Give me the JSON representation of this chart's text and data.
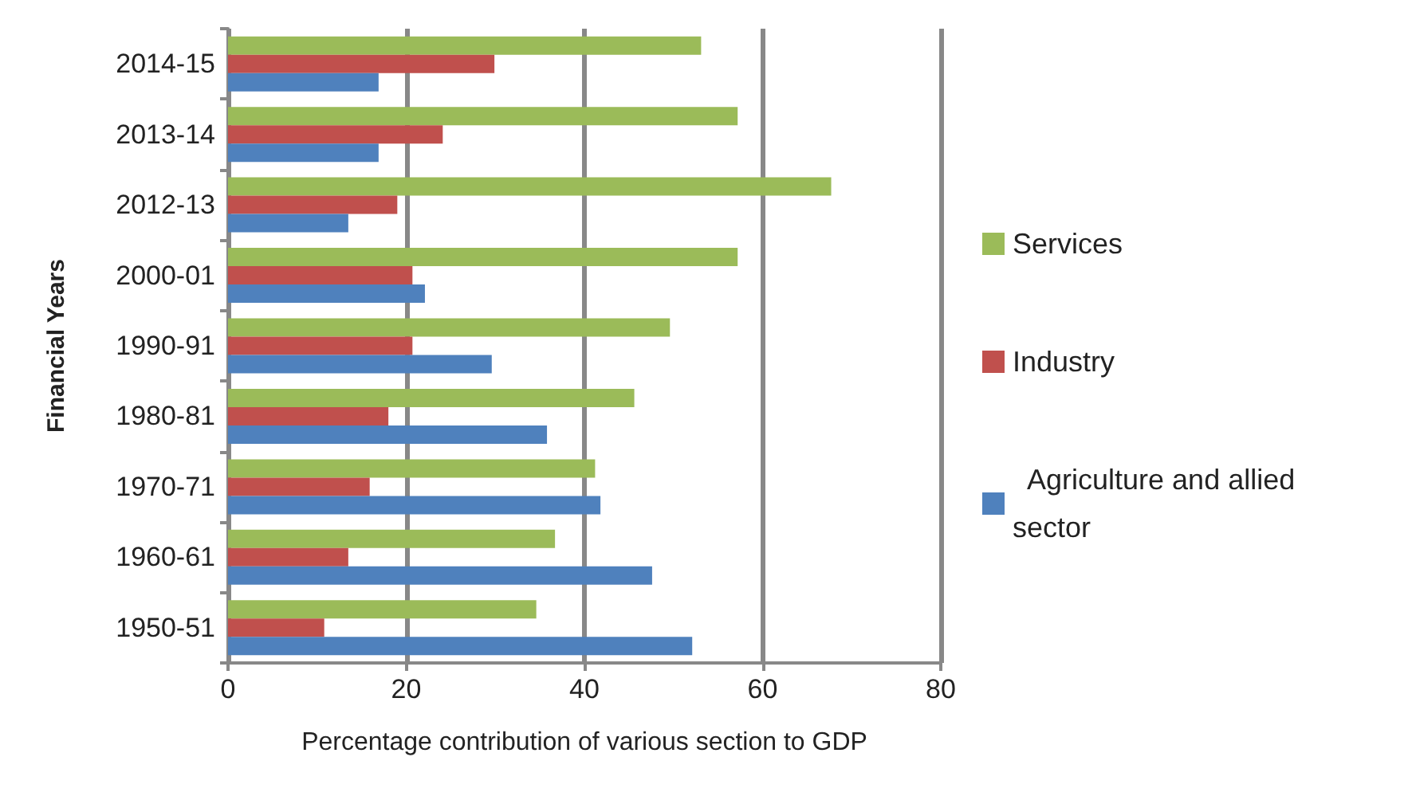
{
  "chart_data": {
    "type": "bar",
    "orientation": "horizontal",
    "xlabel": "Percentage contribution of various section to GDP",
    "ylabel": "Financial Years",
    "categories": [
      "2014-15",
      "2013-14",
      "2012-13",
      "2000-01",
      "1990-91",
      "1980-81",
      "1970-71",
      "1960-61",
      "1950-51"
    ],
    "series": [
      {
        "name": "Services",
        "color": "#9bbb59",
        "values": [
          53.1,
          57.2,
          67.7,
          57.2,
          49.6,
          45.6,
          41.2,
          36.7,
          34.6
        ]
      },
      {
        "name": "Industry",
        "color": "#c0504d",
        "values": [
          29.9,
          24.1,
          19.0,
          20.7,
          20.7,
          18.0,
          15.9,
          13.5,
          10.8
        ]
      },
      {
        "name": "  Agriculture and allied sector",
        "color": "#4f81bd",
        "values": [
          16.9,
          16.9,
          13.5,
          22.1,
          29.6,
          35.8,
          41.8,
          47.6,
          52.1
        ]
      }
    ],
    "xlim": [
      0,
      80
    ],
    "xticks": [
      0,
      20,
      40,
      60,
      80
    ],
    "grid": "x",
    "legend": "right"
  }
}
